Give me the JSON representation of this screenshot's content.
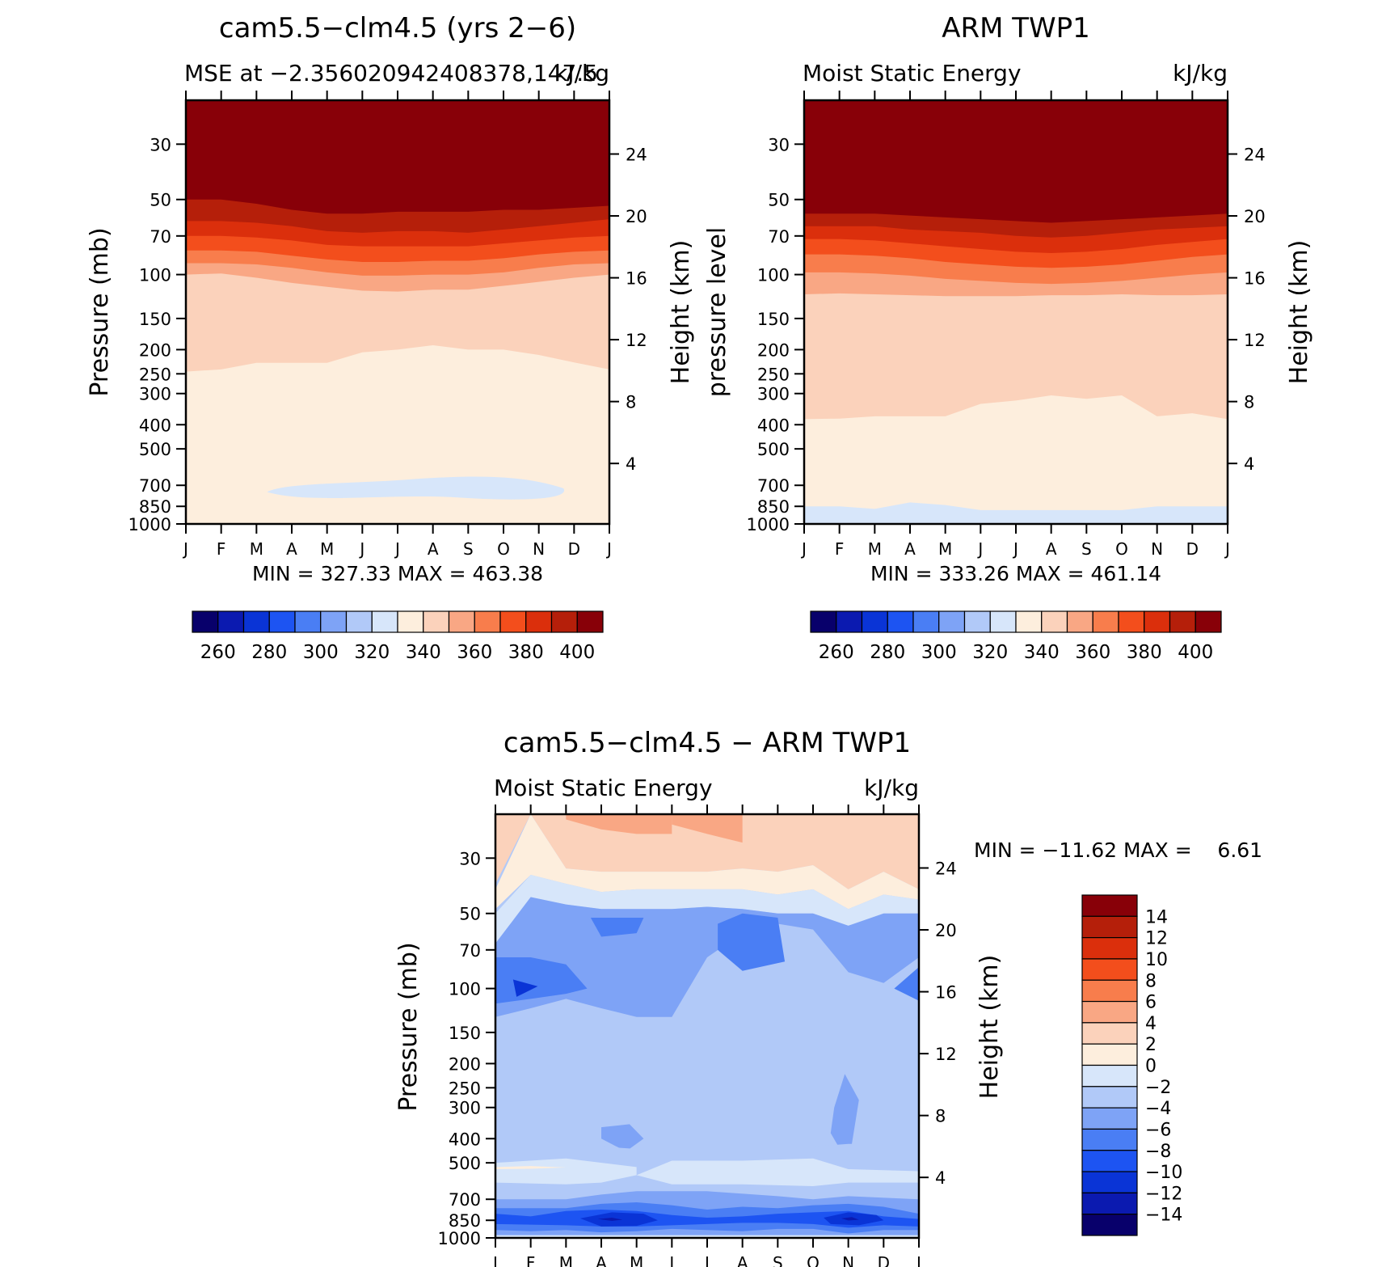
{
  "colors": {
    "mse_scale": [
      "#08006b",
      "#0b1ab0",
      "#0a34d6",
      "#1d54f2",
      "#4a7ef4",
      "#7ea3f6",
      "#b1c9f8",
      "#d7e6fa",
      "#fdeedd",
      "#fbd2bb",
      "#f9a784",
      "#f87d4c",
      "#f34e1c",
      "#db2f0c",
      "#b51f0a",
      "#880008"
    ],
    "diff_scale": [
      "#08006b",
      "#0b1ab0",
      "#0a34d6",
      "#1d54f2",
      "#4a7ef4",
      "#7ea3f6",
      "#b1c9f8",
      "#d7e6fa",
      "#fdeedd",
      "#fbd2bb",
      "#f9a784",
      "#f87d4c",
      "#f34e1c",
      "#db2f0c",
      "#b51f0a",
      "#880008"
    ]
  },
  "chart_data": [
    {
      "type": "contour",
      "title": "cam5.5−clm4.5 (yrs 2−6)",
      "left_subtitle": "MSE at −2.356020942408378,147.5",
      "right_subtitle": "kJ/kg",
      "ylabel": "Pressure (mb)",
      "y2label": "Height (km)",
      "x_ticks": [
        "J",
        "F",
        "M",
        "A",
        "M",
        "J",
        "J",
        "A",
        "S",
        "O",
        "N",
        "D",
        "J"
      ],
      "pressure_ticks": [
        "30",
        "50",
        "70",
        "100",
        "150",
        "200",
        "250",
        "300",
        "400",
        "500",
        "700",
        "850",
        "1000"
      ],
      "height_ticks": [
        "24",
        "20",
        "16",
        "12",
        "8",
        "4"
      ],
      "min_max": "MIN = 327.33 MAX = 463.38",
      "contour_levels": [
        250,
        260,
        270,
        280,
        290,
        300,
        310,
        320,
        330,
        340,
        350,
        360,
        370,
        380,
        390,
        400
      ],
      "colorbar_labels": [
        "260",
        "280",
        "300",
        "320",
        "340",
        "360",
        "380",
        "400"
      ],
      "level_boundaries_mb": {
        "400": [
          50,
          50,
          52,
          55,
          57,
          57,
          56,
          56,
          56,
          55,
          55,
          54,
          53
        ],
        "390": [
          61,
          61,
          62,
          64,
          67,
          68,
          67,
          67,
          68,
          66,
          64,
          62,
          60
        ],
        "380": [
          70,
          70,
          71,
          73,
          76,
          77,
          77,
          77,
          77,
          75,
          73,
          71,
          70
        ],
        "370": [
          80,
          80,
          81,
          84,
          87,
          89,
          89,
          88,
          88,
          86,
          83,
          81,
          80
        ],
        "360": [
          90,
          90,
          91,
          94,
          98,
          101,
          101,
          100,
          100,
          98,
          94,
          91,
          90
        ],
        "350": [
          100,
          99,
          103,
          108,
          112,
          116,
          117,
          115,
          115,
          111,
          107,
          103,
          100
        ],
        "340": [
          245,
          240,
          226,
          226,
          226,
          205,
          200,
          192,
          200,
          200,
          210,
          225,
          240
        ],
        "320": [
          null,
          null,
          null,
          null,
          null,
          null,
          null,
          null,
          null,
          null,
          null,
          null,
          null
        ]
      },
      "low_region": "320–330 bubble near 650–780 mb, Apr–Nov"
    },
    {
      "type": "contour",
      "title": "ARM TWP1",
      "left_subtitle": "Moist Static Energy",
      "right_subtitle": "kJ/kg",
      "ylabel": "pressure level",
      "y2label": "Height (km)",
      "x_ticks": [
        "J",
        "F",
        "M",
        "A",
        "M",
        "J",
        "J",
        "A",
        "S",
        "O",
        "N",
        "D",
        "J"
      ],
      "pressure_ticks": [
        "30",
        "50",
        "70",
        "100",
        "150",
        "200",
        "250",
        "300",
        "400",
        "500",
        "700",
        "850",
        "1000"
      ],
      "height_ticks": [
        "24",
        "20",
        "16",
        "12",
        "8",
        "4"
      ],
      "min_max": "MIN = 333.26 MAX = 461.14",
      "contour_levels": [
        250,
        260,
        270,
        280,
        290,
        300,
        310,
        320,
        330,
        340,
        350,
        360,
        370,
        380,
        390,
        400
      ],
      "colorbar_labels": [
        "260",
        "280",
        "300",
        "320",
        "340",
        "360",
        "380",
        "400"
      ],
      "level_boundaries_mb": {
        "400": [
          57,
          57,
          57,
          58,
          59,
          60,
          61,
          62,
          61,
          60,
          59,
          58,
          57
        ],
        "390": [
          64,
          64,
          64,
          66,
          67,
          68,
          70,
          71,
          70,
          68,
          66,
          65,
          64
        ],
        "380": [
          72,
          72,
          73,
          75,
          77,
          79,
          81,
          82,
          81,
          79,
          76,
          74,
          72
        ],
        "370": [
          83,
          83,
          84,
          86,
          89,
          91,
          93,
          94,
          93,
          91,
          88,
          85,
          83
        ],
        "360": [
          98,
          98,
          99,
          101,
          104,
          106,
          108,
          109,
          108,
          106,
          103,
          100,
          98
        ],
        "350": [
          120,
          119,
          120,
          121,
          122,
          122,
          122,
          121,
          121,
          120,
          121,
          121,
          120
        ],
        "340": [
          380,
          378,
          370,
          370,
          370,
          330,
          320,
          305,
          315,
          305,
          370,
          360,
          380
        ],
        "330": [
          850,
          850,
          870,
          820,
          840,
          880,
          880,
          880,
          880,
          880,
          850,
          850,
          850
        ]
      }
    },
    {
      "type": "contour",
      "title": "cam5.5−clm4.5 − ARM TWP1",
      "left_subtitle": "Moist Static Energy",
      "right_subtitle": "kJ/kg",
      "ylabel": "Pressure (mb)",
      "y2label": "Height (km)",
      "x_ticks": [
        "J",
        "F",
        "M",
        "A",
        "M",
        "J",
        "J",
        "A",
        "S",
        "O",
        "N",
        "D",
        "J"
      ],
      "pressure_ticks": [
        "30",
        "50",
        "70",
        "100",
        "150",
        "200",
        "250",
        "300",
        "400",
        "500",
        "700",
        "850",
        "1000"
      ],
      "height_ticks": [
        "24",
        "20",
        "16",
        "12",
        "8",
        "4"
      ],
      "min_max": "MIN = −11.62 MAX =    6.61",
      "contour_levels": [
        -16,
        -14,
        -12,
        -10,
        -8,
        -6,
        -4,
        -2,
        0,
        2,
        4,
        6,
        8,
        10,
        12,
        14
      ],
      "colorbar_labels": [
        "14",
        "12",
        "10",
        "8",
        "6",
        "4",
        "2",
        "0",
        "−2",
        "−4",
        "−6",
        "−8",
        "−10",
        "−12",
        "−14"
      ],
      "regions": [
        {
          "level": 2,
          "desc": "positive band near 25–40 mb"
        },
        {
          "level": -4,
          "desc": "broad band 50–400 mb"
        },
        {
          "level": -8,
          "desc": "cores near 100 mb (Jan, Aug, Dec) and 850 mb (Apr, Nov)"
        },
        {
          "level": -2,
          "desc": "band near 450–600 mb"
        }
      ]
    }
  ]
}
